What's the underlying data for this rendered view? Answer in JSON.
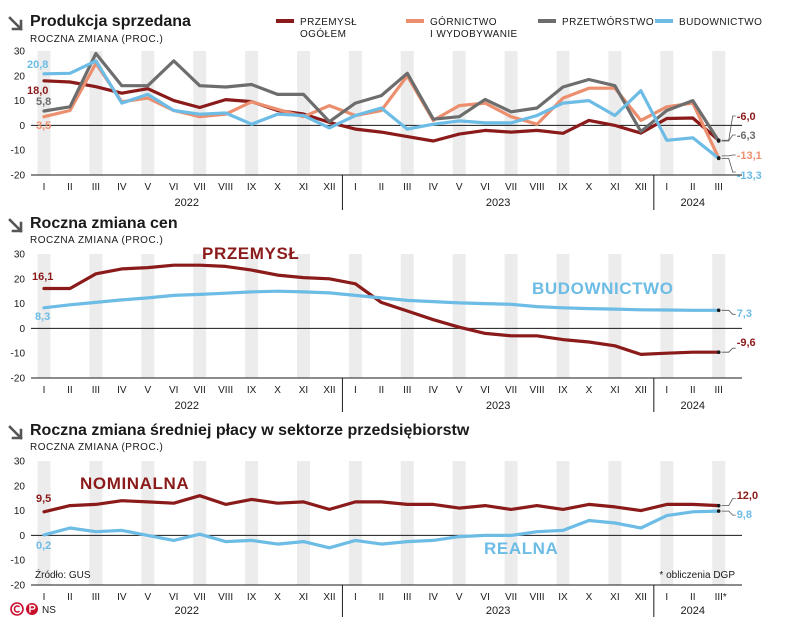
{
  "colors": {
    "przemysl": "#8b1a1a",
    "gornictwo": "#ec8f6e",
    "przetworstwo": "#6d6d6d",
    "budownictwo": "#6cbce6",
    "stripe": "#ececec",
    "accent": "#c8102e"
  },
  "months": [
    "I",
    "II",
    "III",
    "IV",
    "V",
    "VI",
    "VII",
    "VIII",
    "IX",
    "X",
    "XI",
    "XII",
    "I",
    "II",
    "III",
    "IV",
    "V",
    "VI",
    "VII",
    "VIII",
    "IX",
    "X",
    "XI",
    "XII",
    "I",
    "II",
    "III"
  ],
  "years": [
    "2022",
    "2023",
    "2024"
  ],
  "legend": [
    {
      "key": "przemysl",
      "line1": "PRZEMYSŁ",
      "line2": "OGÓŁEM"
    },
    {
      "key": "gornictwo",
      "line1": "GÓRNICTWO",
      "line2": "I WYDOBYWANIE"
    },
    {
      "key": "przetworstwo",
      "line1": "PRZETWÓRSTWO",
      "line2": ""
    },
    {
      "key": "budownictwo",
      "line1": "BUDOWNICTWO",
      "line2": ""
    }
  ],
  "footer": {
    "source": "Źródło: GUS",
    "note": "* obliczenia DGP",
    "note_marker": "*",
    "brand": "NS"
  },
  "chart_data": [
    {
      "type": "line",
      "title": "Produkcja sprzedana",
      "subtitle": "ROCZNA ZMIANA (PROC.)",
      "ylim": [
        -20,
        30
      ],
      "yticks": [
        -20,
        -10,
        0,
        10,
        20,
        30
      ],
      "grid": false,
      "series": [
        {
          "key": "przemysl",
          "name": "PRZEMYSŁ OGÓŁEM",
          "start_label": "18,0",
          "end_label": "-6,0",
          "values": [
            18.0,
            17.5,
            15.6,
            13.0,
            14.8,
            10.0,
            7.2,
            10.4,
            9.6,
            6.0,
            4.6,
            1.2,
            -1.5,
            -2.7,
            -4.5,
            -6.3,
            -3.5,
            -2.0,
            -2.7,
            -2.0,
            -3.2,
            2.0,
            0.0,
            -3.1,
            2.8,
            3.0,
            -6.0
          ]
        },
        {
          "key": "gornictwo",
          "name": "GÓRNICTWO I WYDOBYWANIE",
          "start_label": "3,5",
          "end_label": "-13,1",
          "values": [
            3.5,
            6.0,
            25.0,
            9.5,
            11.0,
            6.0,
            3.5,
            4.5,
            9.5,
            6.5,
            3.5,
            8.0,
            4.0,
            6.0,
            20.0,
            2.0,
            8.0,
            9.0,
            3.5,
            0.5,
            11.0,
            15.0,
            15.0,
            2.0,
            7.5,
            9.0,
            -13.1
          ]
        },
        {
          "key": "przetworstwo",
          "name": "PRZETWÓRSTWO",
          "start_label": "5,8",
          "end_label": "-6,3",
          "values": [
            5.8,
            7.5,
            29.0,
            16.0,
            16.0,
            26.0,
            16.0,
            15.5,
            16.5,
            12.5,
            12.5,
            1.5,
            9.0,
            12.0,
            21.0,
            2.5,
            3.5,
            10.5,
            5.5,
            7.0,
            15.5,
            18.5,
            16.0,
            -2.5,
            6.0,
            10.0,
            -6.3
          ]
        },
        {
          "key": "budownictwo",
          "name": "BUDOWNICTWO",
          "start_label": "20,8",
          "end_label": "-13,3",
          "values": [
            20.8,
            21.0,
            26.0,
            9.0,
            12.5,
            6.0,
            4.5,
            5.0,
            0.5,
            4.5,
            4.0,
            -1.0,
            4.0,
            7.0,
            -1.5,
            0.5,
            1.8,
            1.0,
            1.0,
            4.0,
            9.0,
            10.0,
            4.0,
            14.0,
            -6.0,
            -5.0,
            -13.3
          ]
        }
      ]
    },
    {
      "type": "line",
      "title": "Roczna zmiana cen",
      "subtitle": "ROCZNA ZMIANA (PROC.)",
      "ylim": [
        -20,
        30
      ],
      "yticks": [
        -20,
        -10,
        0,
        10,
        20,
        30
      ],
      "grid": false,
      "series": [
        {
          "key": "przemysl",
          "name": "PRZEMYSŁ",
          "start_label": "16,1",
          "end_label": "-9,6",
          "values": [
            16.1,
            16.1,
            22.0,
            24.0,
            24.5,
            25.5,
            25.5,
            25.0,
            23.5,
            21.5,
            20.5,
            20.0,
            18.0,
            10.5,
            7.0,
            3.5,
            0.5,
            -2.0,
            -3.0,
            -3.0,
            -4.5,
            -5.5,
            -7.0,
            -10.5,
            -10.0,
            -9.6,
            -9.6
          ]
        },
        {
          "key": "budownictwo",
          "name": "BUDOWNICTWO",
          "start_label": "8,3",
          "end_label": "7,3",
          "values": [
            8.3,
            9.5,
            10.5,
            11.5,
            12.3,
            13.3,
            13.7,
            14.2,
            14.7,
            15.0,
            14.7,
            14.3,
            13.3,
            12.3,
            11.3,
            10.8,
            10.3,
            10.0,
            9.7,
            8.8,
            8.3,
            8.0,
            7.8,
            7.5,
            7.4,
            7.3,
            7.3
          ]
        }
      ]
    },
    {
      "type": "line",
      "title": "Roczna zmiana średniej płacy w sektorze przedsiębiorstw",
      "subtitle": "ROCZNA ZMIANA (PROC.)",
      "ylim": [
        -20,
        30
      ],
      "yticks": [
        -20,
        -10,
        0,
        10,
        20,
        30
      ],
      "grid": false,
      "series": [
        {
          "key": "przemysl",
          "name": "NOMINALNA",
          "start_label": "9,5",
          "end_label": "12,0",
          "values": [
            9.5,
            12.0,
            12.5,
            14.0,
            13.5,
            13.0,
            16.0,
            12.5,
            14.5,
            13.0,
            13.5,
            10.5,
            13.5,
            13.5,
            12.5,
            12.5,
            11.0,
            12.0,
            10.5,
            12.0,
            10.5,
            12.5,
            11.5,
            10.0,
            12.5,
            12.5,
            12.0
          ]
        },
        {
          "key": "budownictwo",
          "name": "REALNA",
          "start_label": "0,2",
          "end_label": "9,8",
          "values": [
            0.2,
            3.0,
            1.5,
            2.0,
            0.0,
            -2.0,
            0.5,
            -2.5,
            -2.0,
            -3.5,
            -2.5,
            -5.0,
            -2.0,
            -3.5,
            -2.5,
            -2.0,
            -0.5,
            0.0,
            0.0,
            1.5,
            2.0,
            6.0,
            5.0,
            3.0,
            8.0,
            9.5,
            9.8
          ]
        }
      ]
    }
  ]
}
